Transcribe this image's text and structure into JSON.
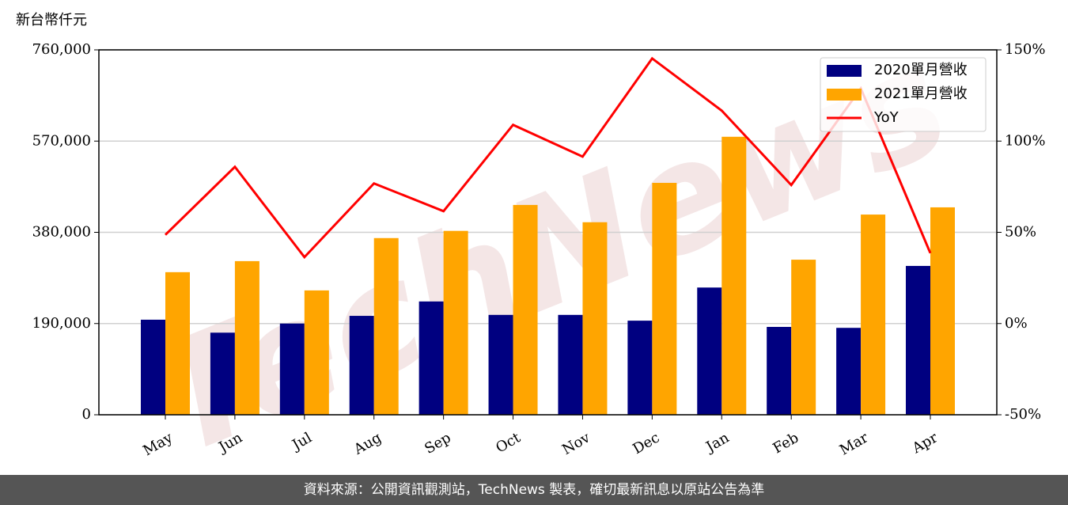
{
  "chart_data": {
    "type": "bar_line",
    "y_label": "新台幣仟元",
    "watermark": "TechNews",
    "footer": "資料來源：公開資訊觀測站，TechNews 製表，確切最新訊息以原站公告為準",
    "categories": [
      "May",
      "Jun",
      "Jul",
      "Aug",
      "Sep",
      "Oct",
      "Nov",
      "Dec",
      "Jan",
      "Feb",
      "Mar",
      "Apr"
    ],
    "series": [
      {
        "name": "2020單月營收",
        "type": "bar",
        "color": "#000080",
        "values": [
          198000,
          171000,
          190000,
          206000,
          236000,
          208000,
          208000,
          196000,
          265000,
          183000,
          181000,
          310000
        ]
      },
      {
        "name": "2021單月營收",
        "type": "bar",
        "color": "#ffa500",
        "values": [
          297000,
          320000,
          259000,
          368000,
          383000,
          437000,
          401000,
          483000,
          579000,
          323000,
          417000,
          432000
        ]
      },
      {
        "name": "YoY",
        "type": "line",
        "axis": "y2",
        "color": "#ff0000",
        "values": [
          48.6,
          85.9,
          36.4,
          76.8,
          61.6,
          108.9,
          91.5,
          145.3,
          116.7,
          75.9,
          128.9,
          38.6
        ]
      }
    ],
    "ylim": [
      0,
      760000
    ],
    "yticks": [
      0,
      {
        "value": 190000,
        "label": "190,000"
      },
      {
        "value": 380000,
        "label": "380,000"
      },
      {
        "value": 570000,
        "label": "570,000"
      },
      {
        "value": 760000,
        "label": "760,000"
      }
    ],
    "y2lim": [
      -50,
      150
    ],
    "y2ticks": [
      {
        "value": -50,
        "label": "-50%"
      },
      {
        "value": 0,
        "label": "0%"
      },
      {
        "value": 50,
        "label": "50%"
      },
      {
        "value": 100,
        "label": "100%"
      },
      {
        "value": 150,
        "label": "150%"
      }
    ],
    "grid": true,
    "legend": "upper right"
  }
}
